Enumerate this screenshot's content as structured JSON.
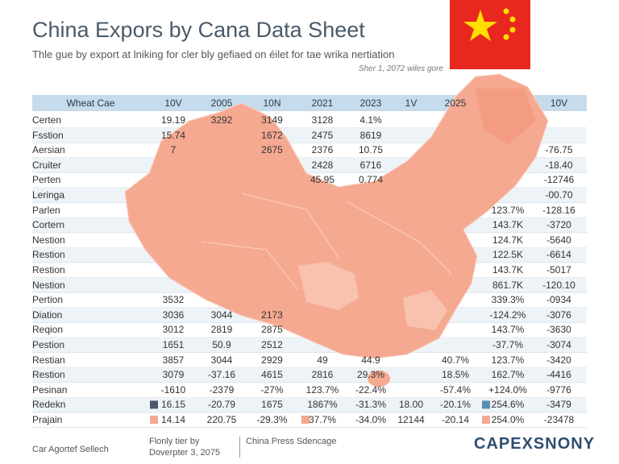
{
  "header": {
    "title": "China Expors by Cana Data Sheet",
    "subtitle": "Thle gue by export at lniking for cler bly gefiaed on éilet for tae wrika nertiation",
    "note": "Sher 1, 2072 wiles gore"
  },
  "table": {
    "headers": [
      "Wheat Cae",
      "10V",
      "2005",
      "10N",
      "2021",
      "2023",
      "1V",
      "2025",
      null,
      "10V"
    ],
    "rows": [
      {
        "name": "Certen",
        "cells": [
          "19.19",
          "3292",
          "3149",
          "3128",
          "4.1%",
          null,
          null,
          null,
          null
        ]
      },
      {
        "name": "Fsstion",
        "cells": [
          "15.74",
          null,
          "1672",
          "2475",
          "8619",
          null,
          null,
          null,
          null
        ]
      },
      {
        "name": "Aersian",
        "cells": [
          "7",
          null,
          "2675",
          "2376",
          "10.75",
          null,
          null,
          null,
          "-76.75"
        ]
      },
      {
        "name": "Cruiter",
        "cells": [
          null,
          null,
          null,
          "2428",
          "6716",
          null,
          null,
          null,
          "-18.40"
        ]
      },
      {
        "name": "Perten",
        "cells": [
          null,
          null,
          null,
          "45.95",
          "0.774",
          null,
          null,
          null,
          "-12746"
        ]
      },
      {
        "name": "Leringa",
        "cells": [
          null,
          null,
          null,
          null,
          null,
          null,
          null,
          null,
          "-00.70"
        ]
      },
      {
        "name": "Parlen",
        "cells": [
          null,
          null,
          null,
          null,
          null,
          null,
          null,
          "123.7%",
          "-128.16"
        ]
      },
      {
        "name": "Cortern",
        "cells": [
          null,
          null,
          null,
          null,
          null,
          null,
          null,
          "143.7K",
          "-3720"
        ]
      },
      {
        "name": "Nestion",
        "cells": [
          null,
          null,
          null,
          null,
          null,
          null,
          null,
          "124.7K",
          "-5640"
        ]
      },
      {
        "name": "Restion",
        "cells": [
          null,
          null,
          null,
          null,
          null,
          null,
          null,
          "122.5K",
          "-6614"
        ]
      },
      {
        "name": "Restion",
        "cells": [
          null,
          null,
          null,
          null,
          null,
          null,
          null,
          "143.7K",
          "-5017"
        ]
      },
      {
        "name": "Nestion",
        "cells": [
          null,
          null,
          null,
          null,
          null,
          null,
          null,
          "861.7K",
          "-120.10"
        ]
      },
      {
        "name": "Pertion",
        "cells": [
          "3532",
          null,
          null,
          null,
          null,
          null,
          null,
          "339.3%",
          "-0934"
        ]
      },
      {
        "name": "Diation",
        "cells": [
          "3036",
          "3044",
          "2173",
          null,
          null,
          null,
          null,
          "-124.2%",
          "-3076"
        ]
      },
      {
        "name": "Reqion",
        "cells": [
          "3012",
          "2819",
          "2875",
          null,
          null,
          null,
          null,
          "143.7%",
          "-3630"
        ]
      },
      {
        "name": "Pestion",
        "cells": [
          "1651",
          "50.9",
          "2512",
          null,
          null,
          null,
          null,
          "-37.7%",
          "-3074"
        ]
      },
      {
        "name": "Restian",
        "cells": [
          "3857",
          "3044",
          "2929",
          "49",
          "44.9",
          null,
          "40.7%",
          "123.7%",
          "-3420"
        ]
      },
      {
        "name": "Restion",
        "cells": [
          "3079",
          "-37.16",
          "4615",
          "2816",
          "29.3%",
          null,
          "18.5%",
          "162.7%",
          "-4416"
        ]
      },
      {
        "name": "Pesinan",
        "cells": [
          "-1610",
          "-2379",
          "-27%",
          "123.7%",
          "-22.4%",
          null,
          "-57.4%",
          "+124.0%",
          "-9776"
        ]
      },
      {
        "name": "Redekn",
        "cells": [
          "16.15",
          "-20.79",
          "1675",
          "1867%",
          "-31.3%",
          "18.00",
          "-20.1%",
          "254.6%",
          "-3479"
        ]
      },
      {
        "name": "Prajain",
        "cells": [
          "14.14",
          "220.75",
          "-29.3%",
          "37.7%",
          "-34.0%",
          "12144",
          "-20.14",
          "254.0%",
          "-23478"
        ]
      }
    ]
  },
  "footer": {
    "left": "Car Agortef Sellech",
    "credit": "Flonly tier by",
    "date": "Doverpter 3, 2075",
    "press": "China Press Sdencage",
    "logo": "CAPEXSNONY"
  }
}
